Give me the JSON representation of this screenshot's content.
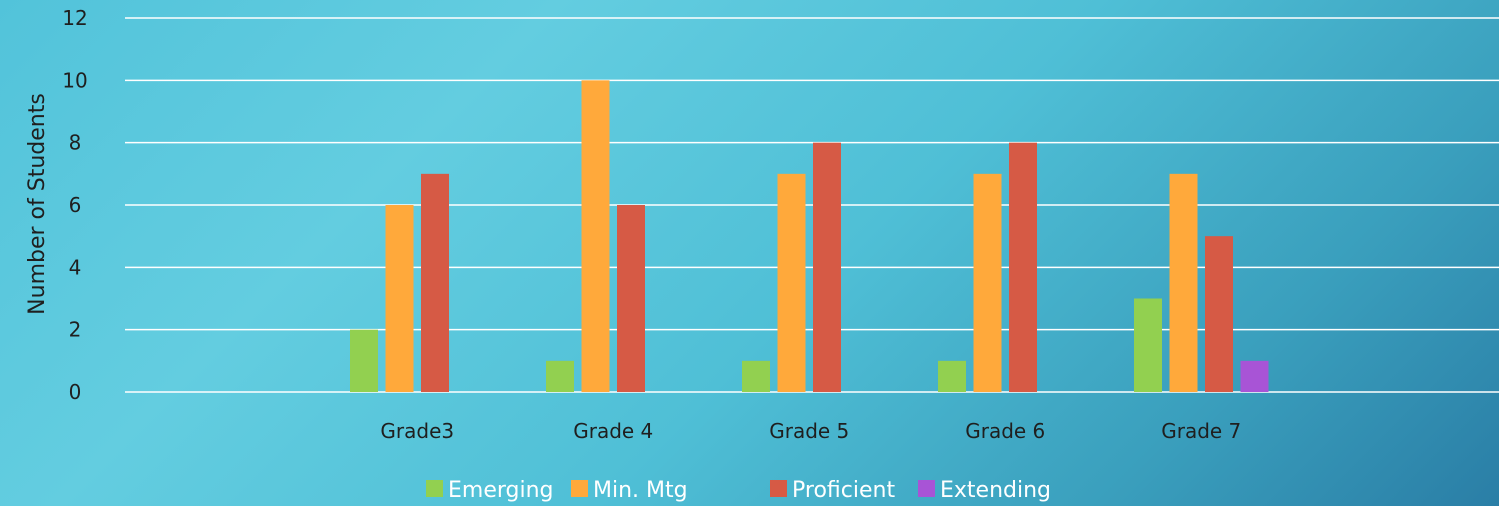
{
  "chart_data": {
    "type": "bar",
    "title": "",
    "xlabel": "",
    "ylabel": "Number of Students",
    "ylim": [
      0,
      12
    ],
    "yticks": [
      0,
      2,
      4,
      6,
      8,
      10,
      12
    ],
    "grid": true,
    "legend_position": "bottom",
    "categories": [
      "Grade3",
      "Grade 4",
      "Grade 5",
      "Grade 6",
      "Grade 7"
    ],
    "series": [
      {
        "name": "Emerging",
        "color": "#92d050",
        "values": [
          2,
          1,
          1,
          1,
          3
        ]
      },
      {
        "name": "Min. Mtg",
        "color": "#ffa93b",
        "values": [
          6,
          10,
          7,
          7,
          7
        ]
      },
      {
        "name": "Proficient",
        "color": "#d65a45",
        "values": [
          7,
          6,
          8,
          8,
          5
        ]
      },
      {
        "name": "Extending",
        "color": "#a854d6",
        "values": [
          0,
          0,
          0,
          0,
          1
        ]
      }
    ]
  }
}
